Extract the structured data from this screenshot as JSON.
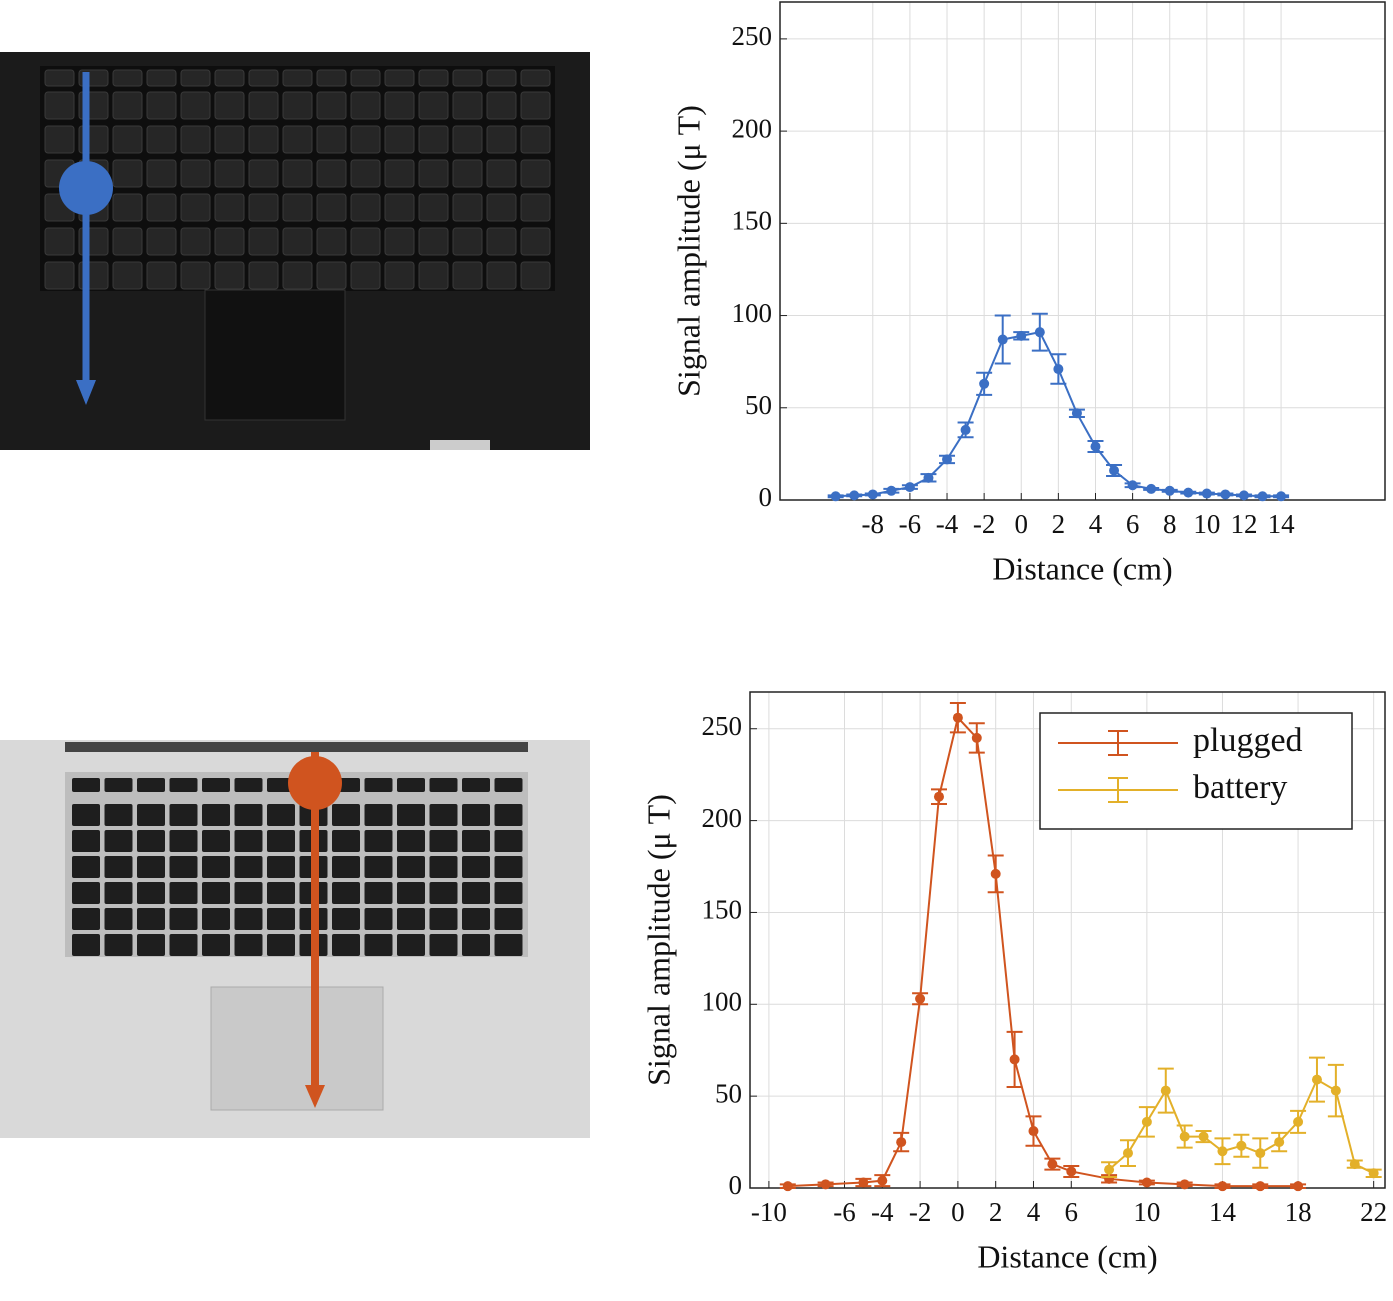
{
  "chart_data": [
    {
      "type": "line",
      "x_label": "Distance (cm)",
      "y_label": "Signal amplitude (μ T)",
      "x": [
        -10,
        -9,
        -8,
        -7,
        -6,
        -5,
        -4,
        -3,
        -2,
        -1,
        0,
        1,
        2,
        3,
        4,
        5,
        6,
        7,
        8,
        9,
        10,
        11,
        12,
        13,
        14
      ],
      "series": [
        {
          "color": "#3b6fc4",
          "values": [
            2,
            2.5,
            3,
            5,
            7,
            12,
            22,
            38,
            63,
            87,
            89,
            91,
            71,
            47,
            29,
            16,
            8,
            6,
            5,
            4,
            3.5,
            3,
            2.5,
            2,
            2
          ],
          "errors": [
            0.5,
            0.5,
            0.5,
            1,
            1,
            2,
            2,
            4,
            6,
            13,
            2,
            10,
            8,
            2,
            3,
            3,
            1,
            0.5,
            0.5,
            0.5,
            0.5,
            0.5,
            0.5,
            0.5,
            0.5
          ]
        }
      ],
      "xlim": [
        -13,
        19.6
      ],
      "ylim": [
        0,
        270
      ],
      "xticks": [
        -8,
        -6,
        -4,
        -2,
        0,
        2,
        4,
        6,
        8,
        10,
        12,
        14
      ],
      "yticks": [
        0,
        50,
        100,
        150,
        200,
        250
      ],
      "grid": true
    },
    {
      "type": "line",
      "x_label": "Distance (cm)",
      "y_label": "Signal amplitude (μ T)",
      "legend": "northeast",
      "series": [
        {
          "name": "plugged",
          "color": "#d0541f",
          "x": [
            -9,
            -7,
            -5,
            -4,
            -3,
            -2,
            -1,
            0,
            1,
            2,
            3,
            4,
            5,
            6,
            8,
            10,
            12,
            14,
            16,
            18
          ],
          "values": [
            1,
            2,
            3,
            4,
            25,
            103,
            213,
            256,
            245,
            171,
            70,
            31,
            13,
            9,
            5,
            3,
            2,
            1,
            1,
            1
          ],
          "errors": [
            1,
            1,
            2,
            3,
            5,
            3,
            4,
            8,
            8,
            10,
            15,
            8,
            3,
            3,
            2,
            1,
            1,
            1,
            1,
            1
          ]
        },
        {
          "name": "battery",
          "color": "#e3b029",
          "x": [
            8,
            9,
            10,
            11,
            12,
            13,
            14,
            15,
            16,
            17,
            18,
            19,
            20,
            21,
            22
          ],
          "values": [
            10,
            19,
            36,
            53,
            28,
            28,
            20,
            23,
            19,
            25,
            36,
            59,
            53,
            13,
            8
          ],
          "errors": [
            4,
            7,
            8,
            12,
            6,
            3,
            7,
            6,
            8,
            5,
            6,
            12,
            14,
            2,
            2
          ]
        }
      ],
      "xlim": [
        -11,
        22.6
      ],
      "ylim": [
        0,
        270
      ],
      "xticks": [
        -10,
        -6,
        -4,
        -2,
        0,
        2,
        4,
        6,
        10,
        14,
        18,
        22
      ],
      "yticks": [
        0,
        50,
        100,
        150,
        200,
        250
      ],
      "grid": true
    }
  ]
}
